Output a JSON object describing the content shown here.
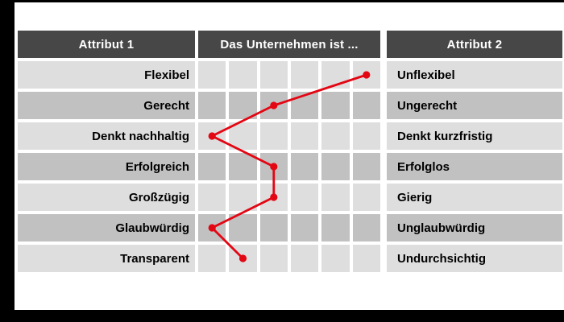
{
  "colors": {
    "accent": "#e30613",
    "header_bg": "#474747",
    "row_light": "#dedede",
    "row_dark": "#c1c1c1",
    "frame": "#000000",
    "header_text": "#ffffff",
    "label_text": "#000000"
  },
  "header": {
    "attribute1": "Attribut 1",
    "scale_title": "Das Unternehmen ist ...",
    "attribute2": "Attribut 2"
  },
  "rows": [
    {
      "left": "Flexibel",
      "right": "Unflexibel",
      "value": 6
    },
    {
      "left": "Gerecht",
      "right": "Ungerecht",
      "value": 3
    },
    {
      "left": "Denkt nachhaltig",
      "right": "Denkt kurzfristig",
      "value": 1
    },
    {
      "left": "Erfolgreich",
      "right": "Erfolglos",
      "value": 3
    },
    {
      "left": "Großzügig",
      "right": "Gierig",
      "value": 3
    },
    {
      "left": "Glaubwürdig",
      "right": "Unglaubwürdig",
      "value": 1
    },
    {
      "left": "Transparent",
      "right": "Undurchsichtig",
      "value": 2
    }
  ],
  "chart_data": {
    "type": "line",
    "subtype": "semantic-differential-profile",
    "title": "Das Unternehmen ist ...",
    "orientation": "vertical profile, one point per attribute row",
    "scale": {
      "min": 1,
      "max": 6,
      "cells": 6,
      "left_pole_header": "Attribut 1",
      "right_pole_header": "Attribut 2"
    },
    "categories_left": [
      "Flexibel",
      "Gerecht",
      "Denkt nachhaltig",
      "Erfolgreich",
      "Großzügig",
      "Glaubwürdig",
      "Transparent"
    ],
    "categories_right": [
      "Unflexibel",
      "Ungerecht",
      "Denkt kurzfristig",
      "Erfolglos",
      "Gierig",
      "Unglaubwürdig",
      "Undurchsichtig"
    ],
    "values": [
      6,
      3,
      1,
      3,
      3,
      1,
      2
    ],
    "grid": true,
    "legend": false,
    "line_color": "#e30613",
    "marker": "filled-circle"
  }
}
